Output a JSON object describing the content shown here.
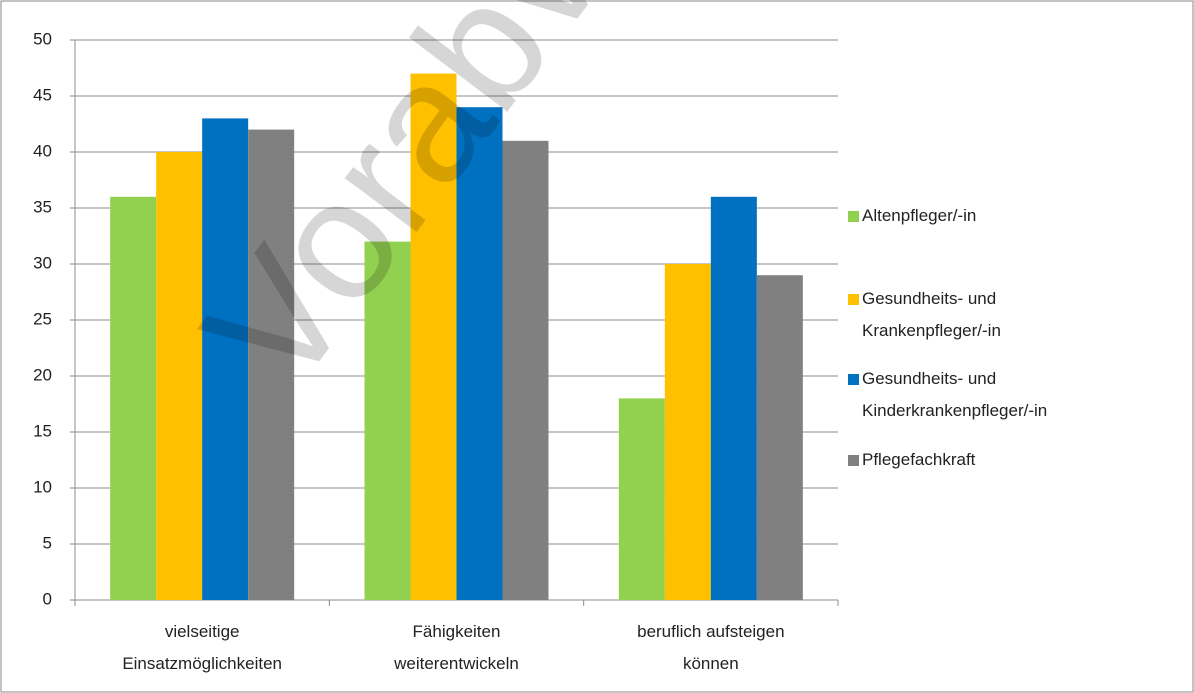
{
  "chart_data": {
    "type": "bar",
    "categories": [
      "vielseitige Einsatzmöglichkeiten",
      "Fähigkeiten weiterentwickeln",
      "beruflich aufsteigen können"
    ],
    "series": [
      {
        "name": "Altenpfleger/-in",
        "color": "#92d050",
        "values": [
          36,
          32,
          18
        ]
      },
      {
        "name": "Gesundheits- und Krankenpfleger/-in",
        "color": "#ffc000",
        "values": [
          40,
          47,
          30
        ]
      },
      {
        "name": "Gesundheits- und Kinderkrankenpfleger/-in",
        "color": "#0070c0",
        "values": [
          43,
          44,
          36
        ]
      },
      {
        "name": "Pflegefachkraft",
        "color": "#808080",
        "values": [
          42,
          41,
          29
        ]
      }
    ],
    "ylim": [
      0,
      50
    ],
    "yticks": [
      0,
      5,
      10,
      15,
      20,
      25,
      30,
      35,
      40,
      45,
      50
    ],
    "grid": true,
    "legend": "right",
    "watermark": "Vorabversion"
  }
}
